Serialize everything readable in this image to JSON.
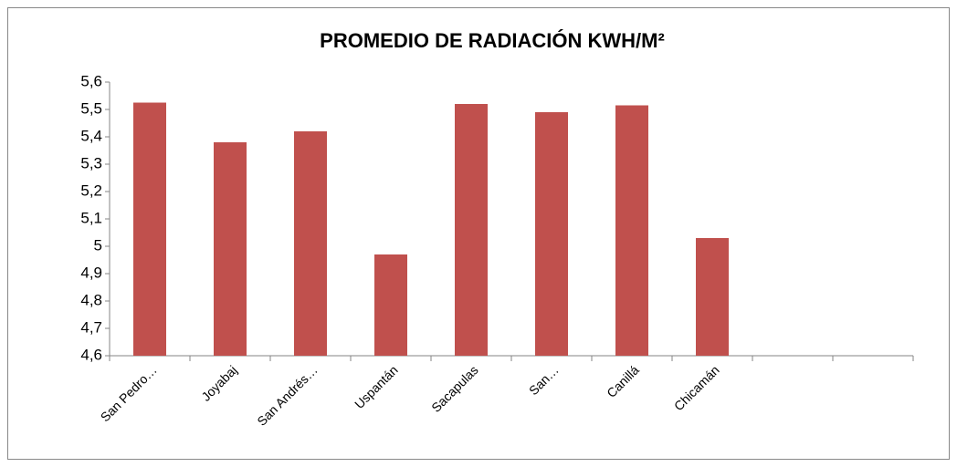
{
  "chart_data": {
    "type": "bar",
    "title": "PROMEDIO DE RADIACIÓN KWH/M²",
    "categories": [
      "San Pedro…",
      "Joyabaj",
      "San Andrés…",
      "Uspantán",
      "Sacapulas",
      "San…",
      "Canillá",
      "Chicamán",
      null,
      null
    ],
    "values": [
      5.525,
      5.38,
      5.42,
      4.97,
      5.52,
      5.49,
      5.515,
      5.03,
      null,
      null
    ],
    "color": "#c0504d",
    "ylim": [
      4.6,
      5.6
    ],
    "yticks": [
      {
        "value": 4.6,
        "label": "4,6"
      },
      {
        "value": 4.7,
        "label": "4,7"
      },
      {
        "value": 4.8,
        "label": "4,8"
      },
      {
        "value": 4.9,
        "label": "4,9"
      },
      5,
      {
        "value": 5.1,
        "label": "5,1"
      },
      {
        "value": 5.2,
        "label": "5,2"
      },
      {
        "value": 5.3,
        "label": "5,3"
      },
      {
        "value": 5.4,
        "label": "5,4"
      },
      {
        "value": 5.5,
        "label": "5,5"
      },
      {
        "value": 5.6,
        "label": "5,6"
      }
    ],
    "grid": false
  }
}
